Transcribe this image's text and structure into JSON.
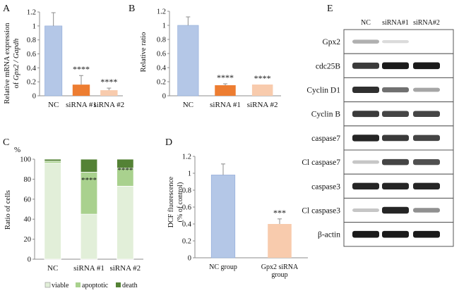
{
  "figure": {
    "panel_letters": [
      "A",
      "B",
      "C",
      "D",
      "E"
    ],
    "colors": {
      "blue": "#b4c7e7",
      "blue_edge": "#8ea9d8",
      "orange": "#ed7d31",
      "peach": "#f8cbad",
      "viable": "#e2efd9",
      "apoptotic": "#a9d18e",
      "death": "#548235",
      "axis": "#8c8c8c",
      "error": "#8c8c8c"
    }
  },
  "chart_data": [
    {
      "panel": "A",
      "type": "bar",
      "title": "",
      "xlabel": "",
      "ylabel": "Relative mRNA expression of Gpx2 / Gapdh",
      "ylabel_line1": "Relative mRNA expression",
      "ylabel_line2_prefix": "of ",
      "ylabel_line2_italic": "Gpx2 / Gapdh",
      "ylim": [
        0,
        1.2
      ],
      "yticks": [
        "0",
        "0.2",
        "0.4",
        "0.6",
        "0.8",
        "1",
        "1.2"
      ],
      "categories": [
        "NC",
        "siRNA #1",
        "siRNA #2"
      ],
      "values": [
        1.0,
        0.16,
        0.08
      ],
      "errors": [
        0.19,
        0.13,
        0.03
      ],
      "significance": [
        "",
        "****",
        "****"
      ],
      "bar_colors": [
        "#b4c7e7",
        "#ed7d31",
        "#f8cbad"
      ]
    },
    {
      "panel": "B",
      "type": "bar",
      "title": "",
      "xlabel": "",
      "ylabel": "Relative ratio",
      "ylim": [
        0,
        1.2
      ],
      "yticks": [
        "0",
        "0.2",
        "0.4",
        "0.6",
        "0.8",
        "1",
        "1.2"
      ],
      "categories": [
        "NC",
        "siRNA #1",
        "siRNA #2"
      ],
      "values": [
        1.0,
        0.15,
        0.16
      ],
      "errors": [
        0.12,
        0.02,
        0.0
      ],
      "significance": [
        "",
        "****",
        "****"
      ],
      "bar_colors": [
        "#b4c7e7",
        "#ed7d31",
        "#f8cbad"
      ]
    },
    {
      "panel": "C",
      "type": "bar",
      "stacked": true,
      "title": "",
      "unit_label": "%",
      "xlabel": "",
      "ylabel": "Ratio of cells",
      "ylim": [
        0,
        100
      ],
      "yticks": [
        "0",
        "20",
        "40",
        "60",
        "80",
        "100"
      ],
      "categories": [
        "NC",
        "siRNA #1",
        "siRNA #2"
      ],
      "series": [
        {
          "name": "viable",
          "values": [
            96,
            45,
            73
          ]
        },
        {
          "name": "apoptotic",
          "values": [
            2,
            42,
            18
          ]
        },
        {
          "name": "death",
          "values": [
            2,
            13,
            9
          ]
        }
      ],
      "significance": [
        "",
        "****",
        "****"
      ],
      "legend": [
        "viable",
        "apoptotic",
        "death"
      ],
      "legend_position": "bottom"
    },
    {
      "panel": "D",
      "type": "bar",
      "title": "",
      "xlabel": "",
      "ylabel": "DCF fluorescence (% of control)",
      "ylabel_line1": "DCF fluorescence",
      "ylabel_line2": "(% of control)",
      "ylim": [
        0,
        1.2
      ],
      "yticks": [
        "0",
        "0.2",
        "0.4",
        "0.6",
        "0.8",
        "1",
        "1.2"
      ],
      "categories": [
        "NC group",
        "Gpx2 siRNA group"
      ],
      "category_lines": [
        [
          "NC group"
        ],
        [
          "Gpx2 siRNA",
          "group"
        ]
      ],
      "values": [
        0.98,
        0.4
      ],
      "errors": [
        0.13,
        0.06
      ],
      "significance": [
        "",
        "***"
      ],
      "bar_colors": [
        "#b4c7e7",
        "#f8cbad"
      ]
    }
  ],
  "western_blot": {
    "lanes": [
      "NC",
      "siRNA#1",
      "siRNA#2"
    ],
    "bands": [
      {
        "label": "Gpx2",
        "intensity": [
          0.25,
          0.05,
          0.0
        ]
      },
      {
        "label": "cdc25B",
        "intensity": [
          0.8,
          0.95,
          0.95
        ]
      },
      {
        "label": "Cyclin D1",
        "intensity": [
          0.85,
          0.55,
          0.3
        ]
      },
      {
        "label": "Cyclin B",
        "intensity": [
          0.8,
          0.75,
          0.75
        ]
      },
      {
        "label": "caspase7",
        "intensity": [
          0.9,
          0.8,
          0.75
        ]
      },
      {
        "label": "Cl caspase7",
        "intensity": [
          0.15,
          0.75,
          0.7
        ]
      },
      {
        "label": "caspase3",
        "intensity": [
          0.9,
          0.9,
          0.9
        ]
      },
      {
        "label": "Cl caspase3",
        "intensity": [
          0.15,
          0.9,
          0.4
        ]
      },
      {
        "label": "β-actin",
        "intensity": [
          0.95,
          0.95,
          0.95
        ]
      }
    ]
  }
}
